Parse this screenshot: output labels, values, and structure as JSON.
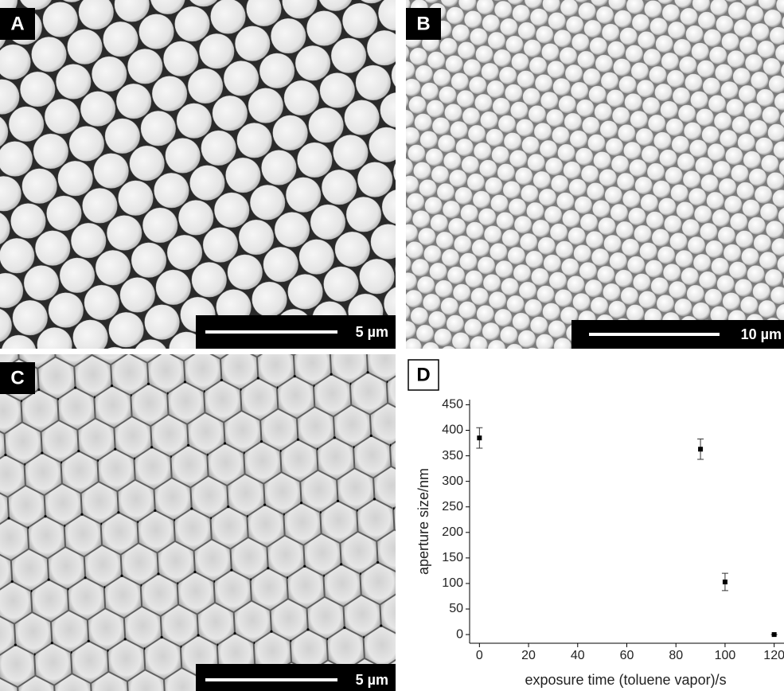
{
  "panels": [
    {
      "label": "A",
      "scale_bar": "5 µm"
    },
    {
      "label": "B",
      "scale_bar": "10 µm"
    },
    {
      "label": "C",
      "scale_bar": "5 µm"
    },
    {
      "label": "D"
    }
  ],
  "chart_data": {
    "type": "scatter",
    "x_label": "exposure time (toluene vapor)/s",
    "y_label": "aperture size/nm",
    "x": [
      0,
      90,
      100,
      120
    ],
    "values": [
      385,
      363,
      103,
      0
    ],
    "errors": [
      20,
      20,
      17,
      0
    ],
    "color": "#000000",
    "xlim": [
      -4,
      124
    ],
    "ylim": [
      -17,
      460
    ],
    "xticks": [
      0,
      20,
      40,
      60,
      80,
      100,
      120
    ],
    "yticks": [
      0,
      50,
      100,
      150,
      200,
      250,
      300,
      350,
      400,
      450
    ]
  }
}
